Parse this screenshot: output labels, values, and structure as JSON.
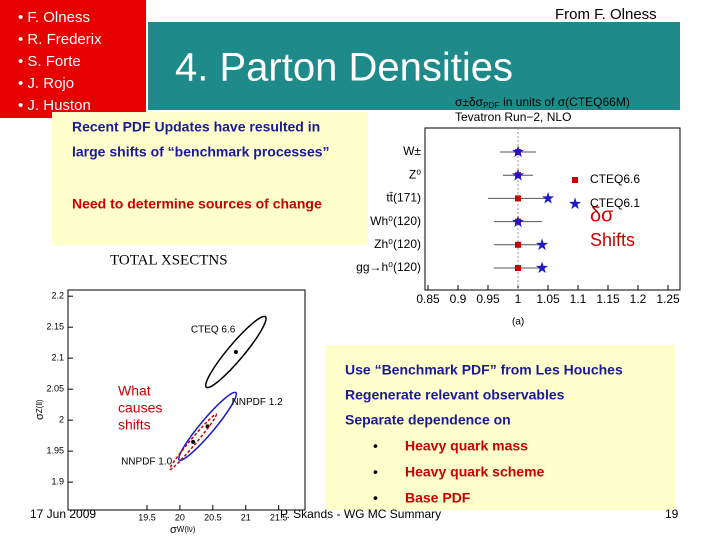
{
  "header": {
    "authors": [
      "• F. Olness",
      "• R. Frederix",
      "• S. Forte",
      "• J. Rojo",
      "• J. Huston"
    ],
    "title": "4. Parton Densities",
    "credit": "From F. Olness"
  },
  "callout": {
    "lines": [
      "Recent PDF Updates have resulted in",
      "large shifts of “benchmark processes”"
    ],
    "conclusion": "Need to determine sources of change"
  },
  "xsec_plot": {
    "header": {
      "symbol": "σ±δσ",
      "sub": "PDF",
      "rest": "in units of σ(CTEQ66M)"
    },
    "subheader": "Tevatron Run−2, NLO",
    "categories": [
      "W±",
      "Z⁰",
      "tt̄(171)",
      "Wh⁰(120)",
      "Zh⁰(120)",
      "gg→h⁰(120)"
    ],
    "series": [
      {
        "name": "CTEQ6.6",
        "color": "#cc0000",
        "values": [
          1,
          1,
          1,
          1,
          1,
          1
        ],
        "errors": [
          0.03,
          0.025,
          0.05,
          0.04,
          0.04,
          0.04
        ]
      },
      {
        "name": "CTEQ6.1",
        "color": "#1a1acc",
        "values": [
          1,
          1,
          1.05,
          1,
          1.04,
          1.04
        ]
      }
    ],
    "xlim": [
      0.85,
      1.25
    ],
    "xticks": [
      0.85,
      0.9,
      0.95,
      1,
      1.05,
      1.1,
      1.15,
      1.2,
      1.25
    ],
    "annotation": [
      "δσ",
      "Shifts"
    ],
    "panel": "(a)"
  },
  "total_label": "TOTAL XSECTNS",
  "ellipse_plot": {
    "xlim": [
      18.3,
      21.9
    ],
    "ylim": [
      1.855,
      2.21
    ],
    "xticks": [
      19.5,
      20,
      20.5,
      21,
      21.5
    ],
    "yticks": [
      2.2,
      2.15,
      2.1,
      2.05,
      2,
      1.95,
      1.9
    ],
    "y_label": {
      "symbol": "σ",
      "sub": "Z(ll)"
    },
    "x_label": {
      "symbol": "σ",
      "sub": "W(lν)"
    },
    "ellipses": [
      {
        "name": "CTEQ 6.6",
        "x": 20.85,
        "y": 2.11
      },
      {
        "name": "NNPDF 1.2",
        "x": 20.42,
        "y": 1.99
      },
      {
        "name": "NNPDF 1.0",
        "x": 20.2,
        "y": 1.965
      }
    ],
    "annotation": [
      "What",
      "causes",
      "shifts"
    ]
  },
  "plan": {
    "lines": [
      "Use “Benchmark PDF” from Les Houches",
      "Regenerate relevant observables",
      "Separate dependence on"
    ],
    "bullets": [
      "Heavy quark mass",
      "Heavy quark scheme",
      "Base PDF"
    ]
  },
  "footer": {
    "date": "17 Jun 2009",
    "center": "P. Skands - WG MC Summary",
    "page": "19"
  }
}
